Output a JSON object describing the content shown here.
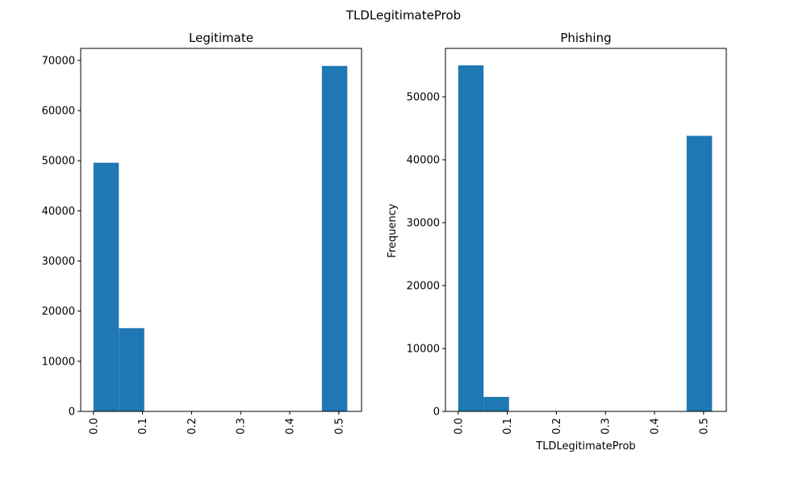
{
  "figure": {
    "suptitle": "TLDLegitimateProb"
  },
  "chart_data": [
    {
      "type": "bar",
      "title": "Legitimate",
      "xlabel": "",
      "ylabel": "",
      "bar_color": "#1f77b4",
      "xlim": [
        -0.026,
        0.5463
      ],
      "ylim": [
        0,
        72400
      ],
      "bins": [
        {
          "x0": 0.0,
          "x1": 0.0517,
          "value": 49600
        },
        {
          "x0": 0.0517,
          "x1": 0.1035,
          "value": 16600
        },
        {
          "x0": 0.1035,
          "x1": 0.1552,
          "value": 0
        },
        {
          "x0": 0.1552,
          "x1": 0.2069,
          "value": 0
        },
        {
          "x0": 0.2069,
          "x1": 0.2586,
          "value": 0
        },
        {
          "x0": 0.2586,
          "x1": 0.3104,
          "value": 0
        },
        {
          "x0": 0.3104,
          "x1": 0.3621,
          "value": 0
        },
        {
          "x0": 0.3621,
          "x1": 0.4138,
          "value": 0
        },
        {
          "x0": 0.4138,
          "x1": 0.4655,
          "value": 0
        },
        {
          "x0": 0.4655,
          "x1": 0.5173,
          "value": 68900
        }
      ],
      "xticks": [
        0.0,
        0.1,
        0.2,
        0.3,
        0.4,
        0.5
      ],
      "xtick_labels": [
        "0.0",
        "0.1",
        "0.2",
        "0.3",
        "0.4",
        "0.5"
      ],
      "yticks": [
        0,
        10000,
        20000,
        30000,
        40000,
        50000,
        60000,
        70000
      ],
      "ytick_labels": [
        "0",
        "10000",
        "20000",
        "30000",
        "40000",
        "50000",
        "60000",
        "70000"
      ]
    },
    {
      "type": "bar",
      "title": "Phishing",
      "xlabel": "TLDLegitimateProb",
      "ylabel": "Frequency",
      "bar_color": "#1f77b4",
      "xlim": [
        -0.026,
        0.5463
      ],
      "ylim": [
        0,
        57700
      ],
      "bins": [
        {
          "x0": 0.0,
          "x1": 0.0517,
          "value": 55000
        },
        {
          "x0": 0.0517,
          "x1": 0.1035,
          "value": 2300
        },
        {
          "x0": 0.1035,
          "x1": 0.1552,
          "value": 0
        },
        {
          "x0": 0.1552,
          "x1": 0.2069,
          "value": 0
        },
        {
          "x0": 0.2069,
          "x1": 0.2586,
          "value": 0
        },
        {
          "x0": 0.2586,
          "x1": 0.3104,
          "value": 0
        },
        {
          "x0": 0.3104,
          "x1": 0.3621,
          "value": 0
        },
        {
          "x0": 0.3621,
          "x1": 0.4138,
          "value": 0
        },
        {
          "x0": 0.4138,
          "x1": 0.4655,
          "value": 0
        },
        {
          "x0": 0.4655,
          "x1": 0.5173,
          "value": 43800
        }
      ],
      "xticks": [
        0.0,
        0.1,
        0.2,
        0.3,
        0.4,
        0.5
      ],
      "xtick_labels": [
        "0.0",
        "0.1",
        "0.2",
        "0.3",
        "0.4",
        "0.5"
      ],
      "yticks": [
        0,
        10000,
        20000,
        30000,
        40000,
        50000
      ],
      "ytick_labels": [
        "0",
        "10000",
        "20000",
        "30000",
        "40000",
        "50000"
      ]
    }
  ]
}
